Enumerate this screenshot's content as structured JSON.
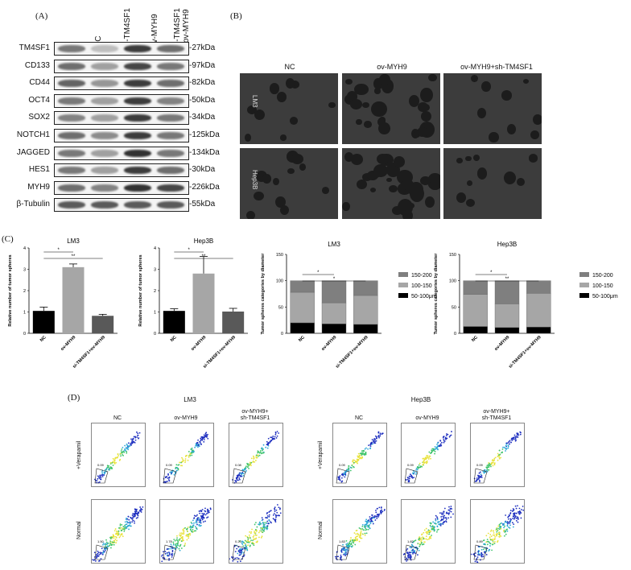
{
  "panel_a": {
    "letter": "(A)",
    "lanes": [
      "NC",
      "si-TM4SF1",
      "ov-MYH9",
      "si-TM4SF1\n+ov-MYH9"
    ],
    "lane_lines": [
      [
        "NC"
      ],
      [
        "si-TM4SF1"
      ],
      [
        "ov-MYH9"
      ],
      [
        "si-TM4SF1",
        "+ov-MYH9"
      ]
    ],
    "rows": [
      {
        "name": "TM4SF1",
        "kda": "-27kDa",
        "intensity": [
          0.55,
          0.2,
          0.85,
          0.6
        ]
      },
      {
        "name": "CD133",
        "kda": "-97kDa",
        "intensity": [
          0.6,
          0.35,
          0.8,
          0.55
        ]
      },
      {
        "name": "CD44",
        "kda": "-82kDa",
        "intensity": [
          0.65,
          0.4,
          0.85,
          0.6
        ]
      },
      {
        "name": "OCT4",
        "kda": "-50kDa",
        "intensity": [
          0.55,
          0.35,
          0.85,
          0.5
        ]
      },
      {
        "name": "SOX2",
        "kda": "-34kDa",
        "intensity": [
          0.5,
          0.35,
          0.85,
          0.55
        ]
      },
      {
        "name": "NOTCH1",
        "kda": "-125kDa",
        "intensity": [
          0.6,
          0.45,
          0.85,
          0.55
        ]
      },
      {
        "name": "JAGGED",
        "kda": "-134kDa",
        "intensity": [
          0.55,
          0.35,
          0.9,
          0.55
        ]
      },
      {
        "name": "HES1",
        "kda": "-30kDa",
        "intensity": [
          0.55,
          0.35,
          0.85,
          0.6
        ]
      },
      {
        "name": "MYH9",
        "kda": "-226kDa",
        "intensity": [
          0.6,
          0.5,
          0.9,
          0.8
        ]
      },
      {
        "name": "β-Tubulin",
        "kda": "-55kDa",
        "intensity": [
          0.7,
          0.7,
          0.7,
          0.7
        ]
      }
    ]
  },
  "panel_b": {
    "letter": "(B)",
    "columns": [
      "NC",
      "ov-MYH9",
      "ov-MYH9+sh-TM4SF1"
    ],
    "rows": [
      "LM3",
      "Hep3B"
    ]
  },
  "panel_c": {
    "letter": "(C)",
    "charts": [
      {
        "chart_data": {
          "type": "bar",
          "title": "LM3",
          "ylabel": "Relative number of tumor spheres",
          "xlabel": "",
          "categories": [
            "NC",
            "ov-MYH9",
            "si-TM4SF1+ov-MYH9"
          ],
          "values": [
            1.05,
            3.1,
            0.82
          ],
          "errors": [
            0.18,
            0.15,
            0.07
          ],
          "colors": [
            "#000000",
            "#a6a6a6",
            "#595959"
          ],
          "ylim": [
            0,
            4
          ],
          "yticks": [
            "0",
            "1",
            "2",
            "3",
            "4"
          ],
          "annotations": [
            "*",
            "**"
          ]
        }
      },
      {
        "chart_data": {
          "type": "bar",
          "title": "Hep3B",
          "ylabel": "Relative number of tumor spheres",
          "xlabel": "",
          "categories": [
            "NC",
            "ov-MYH9",
            "si-TM4SF1+ov-MYH9"
          ],
          "values": [
            1.05,
            2.8,
            1.02
          ],
          "errors": [
            0.1,
            0.8,
            0.15
          ],
          "colors": [
            "#000000",
            "#a6a6a6",
            "#595959"
          ],
          "ylim": [
            0,
            4
          ],
          "yticks": [
            "0",
            "1",
            "2",
            "3",
            "4"
          ],
          "annotations": [
            "*",
            "**"
          ]
        }
      },
      {
        "chart_data": {
          "type": "bar",
          "stacked": true,
          "title": "LM3",
          "ylabel": "Tumor spheres categories by diameter",
          "xlabel": "",
          "categories": [
            "NC",
            "ov-MYH9",
            "si-TM4SF1+ov-MYH9"
          ],
          "series": [
            {
              "name": "50-100μm",
              "values": [
                20,
                18,
                17
              ],
              "color": "#000000"
            },
            {
              "name": "100-150",
              "values": [
                58,
                40,
                55
              ],
              "color": "#a6a6a6"
            },
            {
              "name": "150-200",
              "values": [
                22,
                42,
                28
              ],
              "color": "#7f7f7f"
            }
          ],
          "ylim": [
            0,
            150
          ],
          "yticks": [
            "0",
            "50",
            "100",
            "150"
          ],
          "annotations": [
            "*",
            "*"
          ]
        }
      },
      {
        "chart_data": {
          "type": "bar",
          "stacked": true,
          "title": "Hep3B",
          "ylabel": "Tumor spheres categories by diameter",
          "xlabel": "",
          "categories": [
            "NC",
            "ov-MYH9",
            "si-TM4SF1+ov-MYH9"
          ],
          "series": [
            {
              "name": "50-100μm",
              "values": [
                13,
                11,
                12
              ],
              "color": "#000000"
            },
            {
              "name": "100-150",
              "values": [
                61,
                45,
                64
              ],
              "color": "#a6a6a6"
            },
            {
              "name": "150-200",
              "values": [
                26,
                44,
                24
              ],
              "color": "#7f7f7f"
            }
          ],
          "ylim": [
            0,
            150
          ],
          "yticks": [
            "0",
            "50",
            "100",
            "150"
          ],
          "annotations": [
            "*",
            "**"
          ]
        }
      }
    ]
  },
  "panel_d": {
    "letter": "(D)",
    "groups": [
      {
        "title": "LM3",
        "columns": [
          [
            "NC"
          ],
          [
            "ov-MYH9"
          ],
          [
            "ov-MYH9+",
            "sh-TM4SF1"
          ]
        ],
        "gates": [
          "0.09",
          "0.09",
          "0.08",
          "1.50",
          "1.78",
          "0.20"
        ]
      },
      {
        "title": "Hep3B",
        "columns": [
          [
            "NC"
          ],
          [
            "ov-MYH9"
          ],
          [
            "ov-MYH9+",
            "sh-TM4SF1"
          ]
        ],
        "gates": [
          "0.09",
          "0.09",
          "0.09",
          "1.83",
          "1.82",
          "0.89"
        ]
      }
    ],
    "row_labels": [
      "+Verapamil",
      "Normal"
    ]
  }
}
